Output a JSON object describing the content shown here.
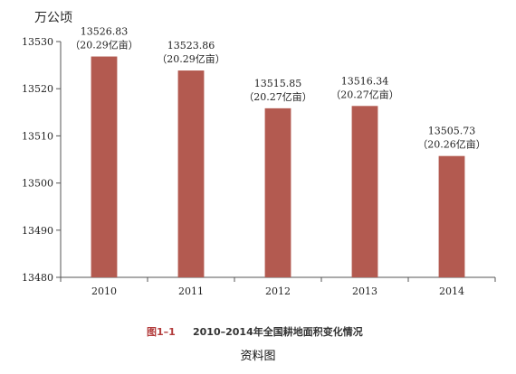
{
  "chart_data": {
    "type": "bar",
    "unit": "万公顷",
    "categories": [
      "2010",
      "2011",
      "2012",
      "2013",
      "2014"
    ],
    "values": [
      13526.83,
      13523.86,
      13515.85,
      13516.34,
      13505.73
    ],
    "value_labels": [
      "13526.83",
      "13523.86",
      "13515.85",
      "13516.34",
      "13505.73"
    ],
    "secondary_labels": [
      "（20.29亿亩）",
      "（20.29亿亩）",
      "（20.27亿亩）",
      "（20.27亿亩）",
      "（20.26亿亩）"
    ],
    "ylim": [
      13480,
      13530
    ],
    "yticks": [
      "13480",
      "13490",
      "13500",
      "13510",
      "13520",
      "13530"
    ],
    "bar_color": "#b35a50",
    "grid": false,
    "figure_number": "图1–1",
    "title": "2010–2014年全国耕地面积变化情况"
  },
  "source": "资料图"
}
